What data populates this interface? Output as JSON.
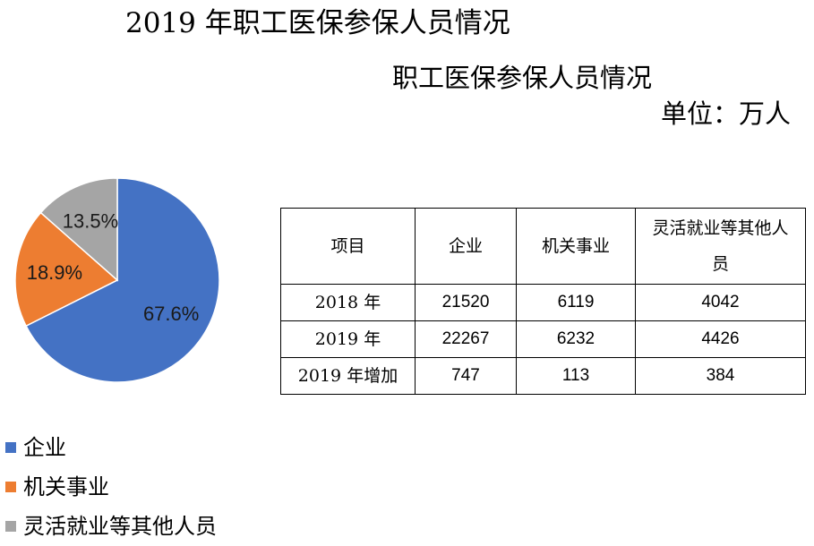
{
  "title": "2019 年职工医保参保人员情况",
  "subtitle": "职工医保参保人员情况",
  "unit": "单位：万人",
  "colors": {
    "enterprise": "#4472C4",
    "institution": "#ED7D31",
    "flexible": "#A5A5A5"
  },
  "chart_data": {
    "type": "pie",
    "categories": [
      "企业",
      "机关事业",
      "灵活就业等其他人员"
    ],
    "values": [
      67.6,
      18.9,
      13.5
    ],
    "labels": [
      "67.6%",
      "18.9%",
      "13.5%"
    ],
    "colors": [
      "#4472C4",
      "#ED7D31",
      "#A5A5A5"
    ],
    "legend_position": "bottom-left"
  },
  "legend": [
    "企业",
    "机关事业",
    "灵活就业等其他人员"
  ],
  "table": {
    "headers": [
      "项目",
      "企业",
      "机关事业",
      "灵活就业等其他人员"
    ],
    "rows": [
      [
        "2018 年",
        "21520",
        "6119",
        "4042"
      ],
      [
        "2019 年",
        "22267",
        "6232",
        "4426"
      ],
      [
        "2019 年增加",
        "747",
        "113",
        "384"
      ]
    ]
  }
}
